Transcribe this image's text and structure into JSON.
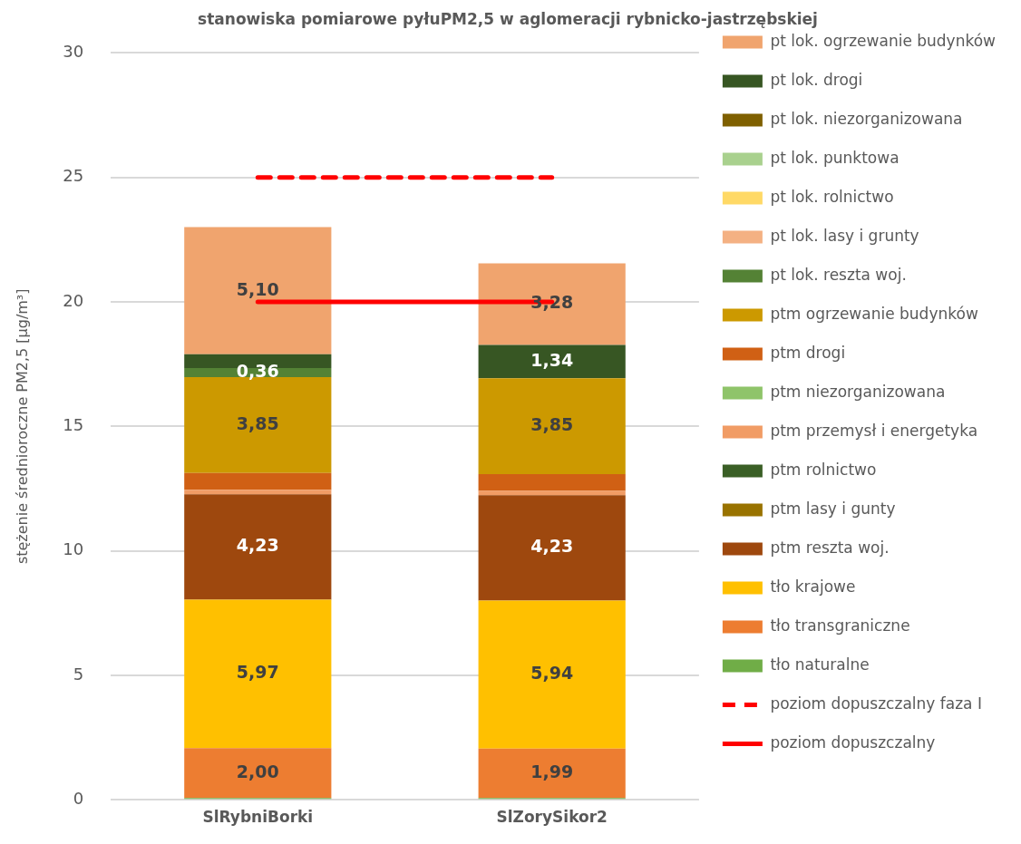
{
  "chart_data": {
    "type": "bar",
    "title": "stanowiska pomiarowe pyłuPM2,5 w aglomeracji rybnicko-jastrzębskiej",
    "ylabel": "stężenie średnioroczne PM2,5 [µg/m³]",
    "categories": [
      "SlRybniBorki",
      "SlZorySikor2"
    ],
    "stacked": true,
    "ylim": [
      0,
      30
    ],
    "yticks": [
      0,
      5,
      10,
      15,
      20,
      25,
      30
    ],
    "grid": "y",
    "legend": "right",
    "series": [
      {
        "name": "tło naturalne",
        "color": "#70ad47",
        "values": [
          0.07,
          0.07
        ],
        "value_labels": [
          null,
          null
        ]
      },
      {
        "name": "tło transgraniczne",
        "color": "#ed7d31",
        "values": [
          2.0,
          1.99
        ],
        "value_labels": [
          "2,00",
          "1,99"
        ]
      },
      {
        "name": "tło krajowe",
        "color": "#ffc000",
        "values": [
          5.97,
          5.94
        ],
        "value_labels": [
          "5,97",
          "5,94"
        ]
      },
      {
        "name": "ptm reszta woj.",
        "color": "#9e480e",
        "values": [
          4.23,
          4.23
        ],
        "value_labels": [
          "4,23",
          "4,23"
        ]
      },
      {
        "name": "ptm lasy i gunty",
        "color": "#997300",
        "values": [
          0,
          0
        ],
        "value_labels": [
          null,
          null
        ]
      },
      {
        "name": "ptm rolnictwo",
        "color": "#3a5f26",
        "values": [
          0,
          0
        ],
        "value_labels": [
          null,
          null
        ]
      },
      {
        "name": "ptm przemysł i energetyka",
        "color": "#f19c65",
        "values": [
          0.18,
          0.18
        ],
        "value_labels": [
          null,
          null
        ]
      },
      {
        "name": "ptm niezorganizowana",
        "color": "#8fc46a",
        "values": [
          0,
          0
        ],
        "value_labels": [
          null,
          null
        ]
      },
      {
        "name": "ptm drogi",
        "color": "#d06014",
        "values": [
          0.68,
          0.67
        ],
        "value_labels": [
          null,
          null
        ]
      },
      {
        "name": "ptm ogrzewanie budynków",
        "color": "#cc9900",
        "values": [
          3.85,
          3.85
        ],
        "value_labels": [
          "3,85",
          "3,85"
        ]
      },
      {
        "name": "pt lok. reszta woj.",
        "color": "#548235",
        "values": [
          0.36,
          0
        ],
        "value_labels": [
          "0,36",
          null
        ]
      },
      {
        "name": "pt lok. lasy i grunty",
        "color": "#f4b183",
        "values": [
          0,
          0
        ],
        "value_labels": [
          null,
          null
        ]
      },
      {
        "name": "pt lok. rolnictwo",
        "color": "#ffd966",
        "values": [
          0,
          0
        ],
        "value_labels": [
          null,
          null
        ]
      },
      {
        "name": "pt lok. punktowa",
        "color": "#a9d18e",
        "values": [
          0,
          0
        ],
        "value_labels": [
          null,
          null
        ]
      },
      {
        "name": "pt lok. niezorganizowana",
        "color": "#7f6000",
        "values": [
          0,
          0
        ],
        "value_labels": [
          null,
          null
        ]
      },
      {
        "name": "pt lok. drogi",
        "color": "#375623",
        "values": [
          0.56,
          1.34
        ],
        "value_labels": [
          null,
          "1,34"
        ]
      },
      {
        "name": "pt lok. ogrzewanie budynków",
        "color": "#f0a46e",
        "values": [
          5.1,
          3.28
        ],
        "value_labels": [
          "5,10",
          "3,28"
        ]
      },
      {
        "name": "poziom dopuszczalny faza I",
        "type": "line",
        "color": "#ff0000",
        "line_style": "dashed",
        "marker": "none",
        "values": [
          25,
          25
        ]
      },
      {
        "name": "poziom dopuszczalny",
        "type": "line",
        "color": "#ff0000",
        "line_style": "solid",
        "marker": "none",
        "values": [
          20,
          20
        ]
      }
    ]
  }
}
